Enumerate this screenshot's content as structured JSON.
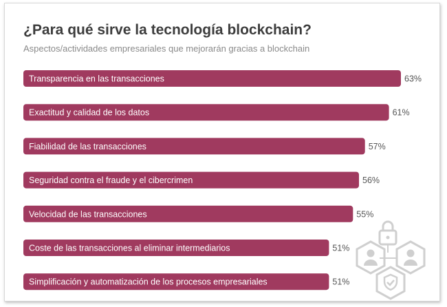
{
  "chart_data": {
    "type": "bar",
    "orientation": "horizontal",
    "title": "¿Para qué sirve la tecnología blockchain?",
    "subtitle": "Aspectos/actividades empresariales que mejorarán gracias a blockchain",
    "categories": [
      "Transparencia en las transacciones",
      "Exactitud y calidad de los datos",
      "Fiabilidad de las transacciones",
      "Seguridad contra el fraude y el cibercrimen",
      "Velocidad de las transacciones",
      "Coste de las transacciones al eliminar intermediarios",
      "Simplificación y automatización de los procesos empresariales"
    ],
    "values": [
      63,
      61,
      57,
      56,
      55,
      51,
      51
    ],
    "value_labels": [
      "63%",
      "61%",
      "57%",
      "56%",
      "55%",
      "51%",
      "51%"
    ],
    "unit": "%",
    "xlim": [
      0,
      63
    ],
    "grid": false,
    "legend": "none",
    "bar_color": "#a03a5f"
  },
  "decoration": {
    "icon": "blockchain-users-lock-icon",
    "color": "#cfcfcf"
  }
}
